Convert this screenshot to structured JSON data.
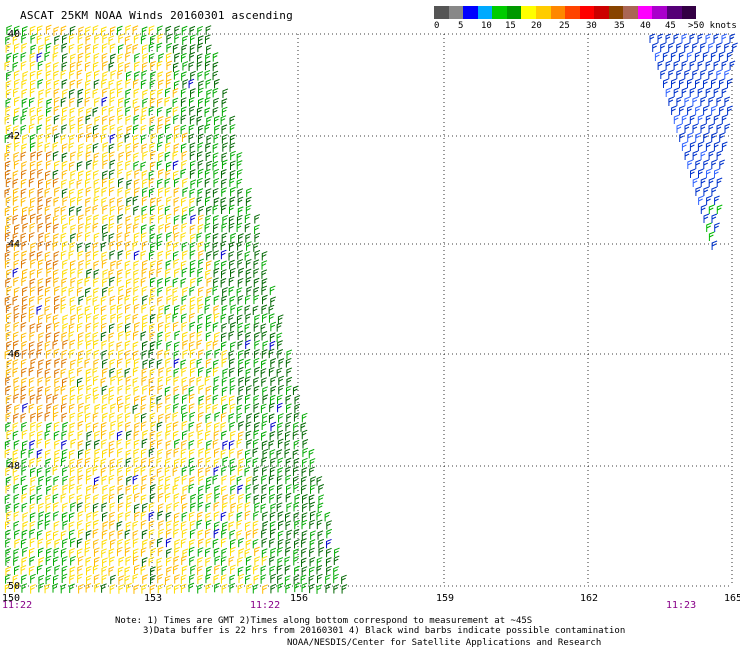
{
  "title": "ASCAT 25KM NOAA Winds 20160301 ascending",
  "legend": {
    "colors": [
      "#555555",
      "#888888",
      "#0000ff",
      "#00aaff",
      "#00cc00",
      "#009900",
      "#ffff00",
      "#ffcc00",
      "#ff8800",
      "#ff4400",
      "#ff0000",
      "#cc0000",
      "#884400",
      "#aa6655",
      "#ff00ff",
      "#aa00cc",
      "#550077",
      "#330044"
    ],
    "labels": [
      "0",
      "5",
      "10",
      "15",
      "20",
      "25",
      "30",
      "35",
      "40",
      "45",
      ">50 knots"
    ]
  },
  "map": {
    "lon_ticks": [
      "150",
      "153",
      "156",
      "159",
      "162",
      "165"
    ],
    "lat_ticks": [
      "40",
      "42",
      "44",
      "46",
      "48",
      "50"
    ],
    "time_labels": [
      "11:22",
      "11:22",
      "11:23"
    ],
    "time_color": "#880088"
  },
  "notes": {
    "line1": "Note: 1) Times are GMT 2)Times along bottom correspond to measurement at ~45S",
    "line2": "3)Data buffer is 22 hrs from 20160301 4) Black wind barbs indicate possible contamination",
    "credit": "NOAA/NESDIS/Center for Satellite Applications and Research"
  }
}
